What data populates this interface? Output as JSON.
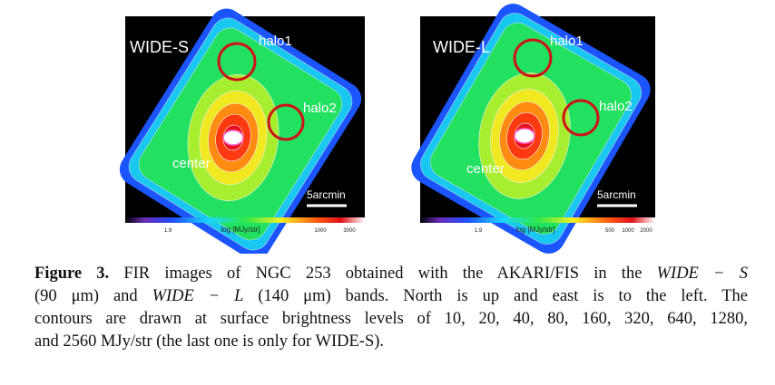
{
  "panels": [
    {
      "label": "WIDE-S",
      "halo1": "halo1",
      "halo2": "halo2",
      "center": "center",
      "scale": "5arcmin",
      "colorbar_labels": [
        "1.9",
        "log [MJy/str]",
        "1000",
        "3000"
      ]
    },
    {
      "label": "WIDE-L",
      "halo1": "halo1",
      "halo2": "halo2",
      "center": "center",
      "scale": "5arcmin",
      "colorbar_labels": [
        "1.9",
        "log [MJy/str]",
        "500",
        "1000",
        "2000"
      ]
    }
  ],
  "caption": {
    "label": "Figure 3.",
    "line1": " FIR images of NGC 253 obtained with the AKARI/FIS in the ",
    "band_s": "WIDE − S",
    "line2a": "(90 μm) and ",
    "band_l": "WIDE − L",
    "line2b": " (140 μm) bands. North is up and east is to the left. The",
    "line3": "contours are drawn at surface brightness levels of 10, 20, 40, 80, 160, 320, 640, 1280,",
    "line4": "and 2560 MJy/str (the last one is only for WIDE-S)."
  }
}
